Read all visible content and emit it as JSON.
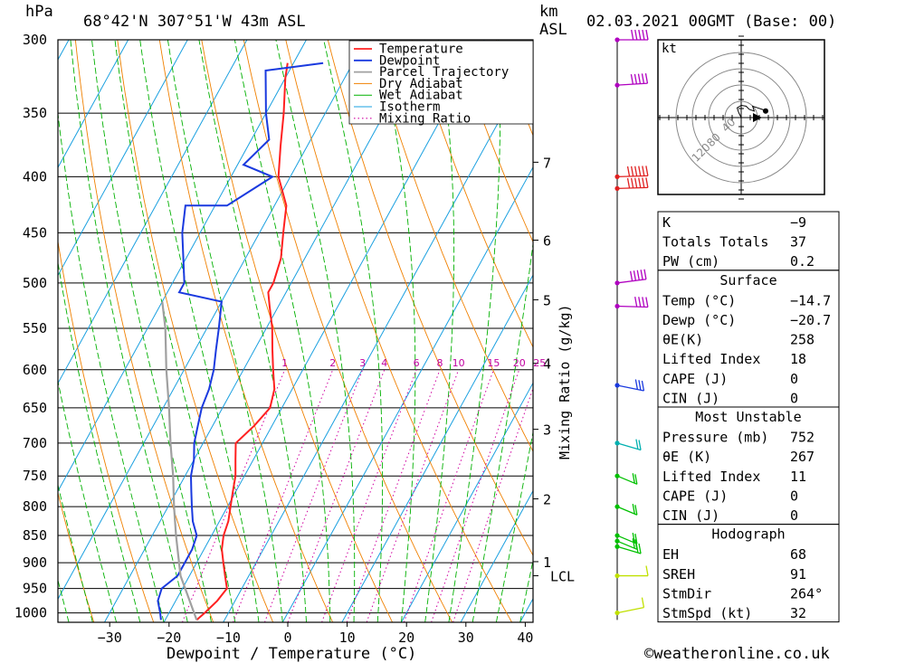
{
  "header": {
    "unit_hpa": "hPa",
    "location": "68°42'N  307°51'W  43m  ASL",
    "km_label": "km",
    "asl_label": "ASL",
    "datetime": "02.03.2021  00GMT  (Base: 00)"
  },
  "footer": {
    "xlabel": "Dewpoint / Temperature (°C)",
    "copyright": "©weatheronline.co.uk"
  },
  "colors": {
    "temperature": "#ff2020",
    "dewpoint": "#1a3adf",
    "parcel": "#a0a0a0",
    "dry_adiabat": "#f08000",
    "wet_adiabat": "#00b000",
    "isotherm": "#1aa0e0",
    "mixing_ratio": "#d000a0"
  },
  "legend": [
    "Temperature",
    "Dewpoint",
    "Parcel Trajectory",
    "Dry Adiabat",
    "Wet Adiabat",
    "Isotherm",
    "Mixing Ratio"
  ],
  "chart_data": {
    "type": "line",
    "subtype": "skew-T log-P",
    "x_ticks": [
      -30,
      -20,
      -10,
      0,
      10,
      20,
      30,
      40
    ],
    "pressure_ticks": [
      300,
      350,
      400,
      450,
      500,
      550,
      600,
      650,
      700,
      750,
      800,
      850,
      900,
      950,
      1000
    ],
    "km_ticks": [
      {
        "p": 388,
        "label": "7"
      },
      {
        "p": 457,
        "label": "6"
      },
      {
        "p": 518,
        "label": "5"
      },
      {
        "p": 592,
        "label": "4"
      },
      {
        "p": 680,
        "label": "3"
      },
      {
        "p": 787,
        "label": "2"
      },
      {
        "p": 898,
        "label": "1"
      },
      {
        "p": 925,
        "label": "LCL"
      }
    ],
    "mixing_ratio_labels": [
      "1",
      "2",
      "3",
      "4",
      "6",
      "8",
      "10",
      "15",
      "20",
      "25"
    ],
    "ylabel_right": "Mixing Ratio (g/kg)",
    "series": [
      {
        "name": "Temperature",
        "points": [
          [
            1015,
            -14.7
          ],
          [
            1000,
            -14
          ],
          [
            975,
            -13
          ],
          [
            950,
            -12.5
          ],
          [
            925,
            -14
          ],
          [
            900,
            -15.5
          ],
          [
            875,
            -17
          ],
          [
            850,
            -18
          ],
          [
            825,
            -18.5
          ],
          [
            800,
            -19.5
          ],
          [
            775,
            -20.5
          ],
          [
            750,
            -21.5
          ],
          [
            725,
            -23
          ],
          [
            700,
            -24.5
          ],
          [
            675,
            -23
          ],
          [
            650,
            -22
          ],
          [
            625,
            -23
          ],
          [
            600,
            -25
          ],
          [
            575,
            -27
          ],
          [
            550,
            -29
          ],
          [
            525,
            -31.5
          ],
          [
            510,
            -33
          ],
          [
            500,
            -33
          ],
          [
            475,
            -34
          ],
          [
            450,
            -36
          ],
          [
            425,
            -38
          ],
          [
            400,
            -42
          ],
          [
            375,
            -44.5
          ],
          [
            350,
            -47
          ],
          [
            325,
            -50
          ],
          [
            315,
            -51
          ]
        ]
      },
      {
        "name": "Dewpoint",
        "points": [
          [
            1015,
            -20.7
          ],
          [
            1000,
            -21.5
          ],
          [
            975,
            -23
          ],
          [
            950,
            -23.5
          ],
          [
            925,
            -22
          ],
          [
            900,
            -22
          ],
          [
            875,
            -22
          ],
          [
            850,
            -22.5
          ],
          [
            825,
            -24.5
          ],
          [
            800,
            -26
          ],
          [
            775,
            -27.5
          ],
          [
            750,
            -29
          ],
          [
            725,
            -30
          ],
          [
            700,
            -31.5
          ],
          [
            675,
            -32.5
          ],
          [
            650,
            -33.5
          ],
          [
            625,
            -34
          ],
          [
            600,
            -35
          ],
          [
            575,
            -36.5
          ],
          [
            550,
            -38
          ],
          [
            520,
            -40
          ],
          [
            510,
            -48
          ],
          [
            500,
            -48
          ],
          [
            450,
            -53
          ],
          [
            425,
            -55
          ],
          [
            425,
            -48
          ],
          [
            400,
            -43
          ],
          [
            390,
            -49
          ],
          [
            370,
            -47
          ],
          [
            350,
            -50
          ],
          [
            320,
            -54
          ],
          [
            315,
            -45
          ]
        ]
      },
      {
        "name": "Parcel Trajectory",
        "points": [
          [
            1015,
            -14.7
          ],
          [
            925,
            -21.5
          ],
          [
            850,
            -26
          ],
          [
            800,
            -29
          ],
          [
            750,
            -32
          ],
          [
            700,
            -35.5
          ],
          [
            650,
            -39
          ],
          [
            600,
            -43
          ],
          [
            550,
            -47
          ],
          [
            520,
            -50
          ]
        ]
      }
    ],
    "wind_barbs": [
      {
        "p": 300,
        "dir": 270,
        "kt": 50
      },
      {
        "p": 330,
        "dir": 260,
        "kt": 55
      },
      {
        "p": 400,
        "dir": 265,
        "kt": 60
      },
      {
        "p": 410,
        "dir": 265,
        "kt": 65
      },
      {
        "p": 500,
        "dir": 250,
        "kt": 50
      },
      {
        "p": 525,
        "dir": 275,
        "kt": 45
      },
      {
        "p": 620,
        "dir": 300,
        "kt": 35
      },
      {
        "p": 700,
        "dir": 310,
        "kt": 20
      },
      {
        "p": 750,
        "dir": 320,
        "kt": 20
      },
      {
        "p": 800,
        "dir": 320,
        "kt": 20
      },
      {
        "p": 850,
        "dir": 320,
        "kt": 20
      },
      {
        "p": 860,
        "dir": 320,
        "kt": 25
      },
      {
        "p": 870,
        "dir": 310,
        "kt": 25
      },
      {
        "p": 925,
        "dir": 270,
        "kt": 15
      },
      {
        "p": 1000,
        "dir": 240,
        "kt": 10
      }
    ],
    "hodograph": {
      "unit": "kt",
      "ring_labels": [
        "40",
        "80",
        "120"
      ],
      "points": [
        [
          0,
          0
        ],
        [
          -3,
          6
        ],
        [
          -5,
          12
        ],
        [
          0,
          15
        ],
        [
          6,
          14
        ],
        [
          10,
          10
        ],
        [
          16,
          8
        ],
        [
          14,
          14
        ],
        [
          20,
          12
        ],
        [
          26,
          10
        ],
        [
          30,
          8
        ]
      ]
    }
  },
  "indices": {
    "general": [
      {
        "label": "K",
        "value": "-9"
      },
      {
        "label": "Totals Totals",
        "value": "37"
      },
      {
        "label": "PW (cm)",
        "value": "0.2"
      }
    ],
    "surface": {
      "title": "Surface",
      "rows": [
        {
          "label": "Temp (°C)",
          "value": "-14.7"
        },
        {
          "label": "Dewp (°C)",
          "value": "-20.7"
        },
        {
          "label": "θE(K)",
          "value": "258"
        },
        {
          "label": "Lifted Index",
          "value": "18"
        },
        {
          "label": "CAPE (J)",
          "value": "0"
        },
        {
          "label": "CIN (J)",
          "value": "0"
        }
      ]
    },
    "most_unstable": {
      "title": "Most Unstable",
      "rows": [
        {
          "label": "Pressure (mb)",
          "value": "752"
        },
        {
          "label": "θE (K)",
          "value": "267"
        },
        {
          "label": "Lifted Index",
          "value": "11"
        },
        {
          "label": "CAPE (J)",
          "value": "0"
        },
        {
          "label": "CIN (J)",
          "value": "0"
        }
      ]
    },
    "hodograph": {
      "title": "Hodograph",
      "rows": [
        {
          "label": "EH",
          "value": "68"
        },
        {
          "label": "SREH",
          "value": "91"
        },
        {
          "label": "StmDir",
          "value": "264°"
        },
        {
          "label": "StmSpd (kt)",
          "value": "32"
        }
      ]
    }
  }
}
